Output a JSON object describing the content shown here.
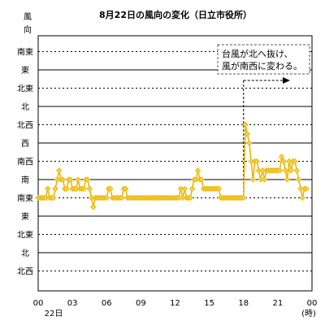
{
  "chart_data": {
    "type": "line",
    "title": "8月22日の風向の変化（日立市役所）",
    "ylabel_chars": [
      "風",
      "向"
    ],
    "y_categories": [
      "南東",
      "東",
      "北東",
      "北",
      "北西",
      "西",
      "南西",
      "南",
      "南東",
      "東",
      "北東",
      "北",
      "北西"
    ],
    "x_ticks": [
      "00",
      "03",
      "06",
      "09",
      "12",
      "15",
      "18",
      "21",
      "00"
    ],
    "x_tick_hours": [
      0,
      3,
      6,
      9,
      12,
      15,
      18,
      21,
      24
    ],
    "x_sublabel": "22日",
    "x_unit": "(時)",
    "xlim": [
      0,
      24
    ],
    "annotation": {
      "lines": [
        "台風が北へ抜け、",
        "風が南西に変わる。"
      ],
      "at_hour": 18
    },
    "colors": {
      "series": "#e8b400",
      "point_fill": "#f5d24a",
      "grid": "#000000",
      "arrow": "#000000"
    },
    "series": [
      {
        "points": [
          [
            0.0,
            8
          ],
          [
            0.17,
            8
          ],
          [
            0.33,
            8
          ],
          [
            0.5,
            8
          ],
          [
            0.67,
            8
          ],
          [
            0.83,
            7.5
          ],
          [
            1.0,
            8
          ],
          [
            1.17,
            8
          ],
          [
            1.33,
            8
          ],
          [
            1.5,
            7.5
          ],
          [
            1.67,
            7
          ],
          [
            1.83,
            6.5
          ],
          [
            2.0,
            7
          ],
          [
            2.17,
            7
          ],
          [
            2.33,
            7.5
          ],
          [
            2.5,
            7.5
          ],
          [
            2.67,
            7
          ],
          [
            2.83,
            7
          ],
          [
            3.0,
            7.5
          ],
          [
            3.17,
            7.5
          ],
          [
            3.33,
            7.5
          ],
          [
            3.5,
            7
          ],
          [
            3.67,
            7.5
          ],
          [
            3.83,
            7.5
          ],
          [
            4.0,
            7.5
          ],
          [
            4.17,
            7
          ],
          [
            4.33,
            7
          ],
          [
            4.5,
            7.5
          ],
          [
            4.67,
            8
          ],
          [
            4.83,
            8.5
          ],
          [
            5.0,
            8
          ],
          [
            5.17,
            8
          ],
          [
            5.33,
            8
          ],
          [
            5.5,
            8
          ],
          [
            5.67,
            8
          ],
          [
            5.83,
            8
          ],
          [
            6.0,
            8
          ],
          [
            6.17,
            7.5
          ],
          [
            6.33,
            7.5
          ],
          [
            6.5,
            8
          ],
          [
            6.67,
            8
          ],
          [
            6.83,
            8
          ],
          [
            7.0,
            8
          ],
          [
            7.17,
            8
          ],
          [
            7.33,
            8
          ],
          [
            7.5,
            7.5
          ],
          [
            7.67,
            7.5
          ],
          [
            7.83,
            8
          ],
          [
            8.0,
            8
          ],
          [
            8.17,
            8
          ],
          [
            8.33,
            8
          ],
          [
            8.5,
            8
          ],
          [
            8.67,
            8
          ],
          [
            8.83,
            8
          ],
          [
            9.0,
            8
          ],
          [
            9.17,
            8
          ],
          [
            9.33,
            8
          ],
          [
            9.5,
            8
          ],
          [
            9.67,
            8
          ],
          [
            9.83,
            8
          ],
          [
            10.0,
            8
          ],
          [
            10.17,
            8
          ],
          [
            10.33,
            8
          ],
          [
            10.5,
            8
          ],
          [
            10.67,
            8
          ],
          [
            10.83,
            8
          ],
          [
            11.0,
            8
          ],
          [
            11.17,
            8
          ],
          [
            11.33,
            8
          ],
          [
            11.5,
            8
          ],
          [
            11.67,
            8
          ],
          [
            11.83,
            8
          ],
          [
            12.0,
            8
          ],
          [
            12.17,
            8
          ],
          [
            12.33,
            8
          ],
          [
            12.5,
            7.5
          ],
          [
            12.67,
            8
          ],
          [
            12.83,
            7.5
          ],
          [
            13.0,
            8
          ],
          [
            13.17,
            8
          ],
          [
            13.33,
            8
          ],
          [
            13.5,
            7.5
          ],
          [
            13.67,
            7
          ],
          [
            13.83,
            7
          ],
          [
            14.0,
            6.5
          ],
          [
            14.17,
            7
          ],
          [
            14.33,
            7
          ],
          [
            14.5,
            7.5
          ],
          [
            14.67,
            7.5
          ],
          [
            14.83,
            7.5
          ],
          [
            15.0,
            7.5
          ],
          [
            15.17,
            7.5
          ],
          [
            15.33,
            7.5
          ],
          [
            15.5,
            7.5
          ],
          [
            15.67,
            7.5
          ],
          [
            15.83,
            7.5
          ],
          [
            16.0,
            8
          ],
          [
            16.17,
            8
          ],
          [
            16.33,
            8
          ],
          [
            16.5,
            8
          ],
          [
            16.67,
            8
          ],
          [
            16.83,
            8
          ],
          [
            17.0,
            8
          ],
          [
            17.17,
            8
          ],
          [
            17.33,
            8
          ],
          [
            17.5,
            8
          ],
          [
            17.67,
            8
          ],
          [
            17.83,
            8
          ],
          [
            18.0,
            8
          ],
          [
            18.17,
            4
          ],
          [
            18.33,
            4.5
          ],
          [
            18.5,
            5
          ],
          [
            18.67,
            6
          ],
          [
            18.83,
            7
          ],
          [
            19.0,
            6
          ],
          [
            19.17,
            6
          ],
          [
            19.33,
            6.5
          ],
          [
            19.5,
            7
          ],
          [
            19.67,
            6.5
          ],
          [
            19.83,
            7
          ],
          [
            20.0,
            6.5
          ],
          [
            20.17,
            6.5
          ],
          [
            20.33,
            6.5
          ],
          [
            20.5,
            6.5
          ],
          [
            20.67,
            6.5
          ],
          [
            20.83,
            6.5
          ],
          [
            21.0,
            6.5
          ],
          [
            21.17,
            6.5
          ],
          [
            21.33,
            5.75
          ],
          [
            21.5,
            6
          ],
          [
            21.67,
            6.5
          ],
          [
            21.83,
            7
          ],
          [
            22.0,
            6
          ],
          [
            22.17,
            6.5
          ],
          [
            22.33,
            6
          ],
          [
            22.5,
            6
          ],
          [
            22.67,
            6.5
          ],
          [
            22.83,
            7
          ],
          [
            23.0,
            7.5
          ],
          [
            23.17,
            8
          ],
          [
            23.33,
            7.5
          ],
          [
            23.5,
            7.5
          ]
        ]
      }
    ]
  }
}
